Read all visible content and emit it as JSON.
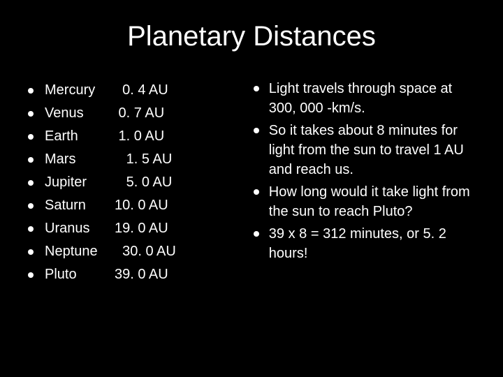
{
  "background_color": "#000000",
  "text_color": "#ffffff",
  "title": "Planetary Distances",
  "title_fontsize": 40,
  "body_fontsize": 20,
  "bullet_color": "#ffffff",
  "planets": [
    {
      "name": "Mercury",
      "distance": "  0. 4 AU"
    },
    {
      "name": "Venus",
      "distance": " 0. 7 AU"
    },
    {
      "name": "Earth",
      "distance": " 1. 0 AU"
    },
    {
      "name": "Mars",
      "distance": "   1. 5 AU"
    },
    {
      "name": "Jupiter",
      "distance": "   5. 0 AU"
    },
    {
      "name": "Saturn",
      "distance": "10. 0 AU"
    },
    {
      "name": "Uranus",
      "distance": "19. 0 AU"
    },
    {
      "name": "Neptune",
      "distance": "  30. 0 AU"
    },
    {
      "name": "Pluto",
      "distance": "39. 0 AU"
    }
  ],
  "facts": [
    "Light travels through space at 300, 000 -km/s.",
    "So it takes about 8 minutes for light from the sun to travel 1 AU and reach us.",
    "How long would it take light from the sun to reach Pluto?",
    "39 x 8 = 312 minutes, or 5. 2 hours!"
  ]
}
